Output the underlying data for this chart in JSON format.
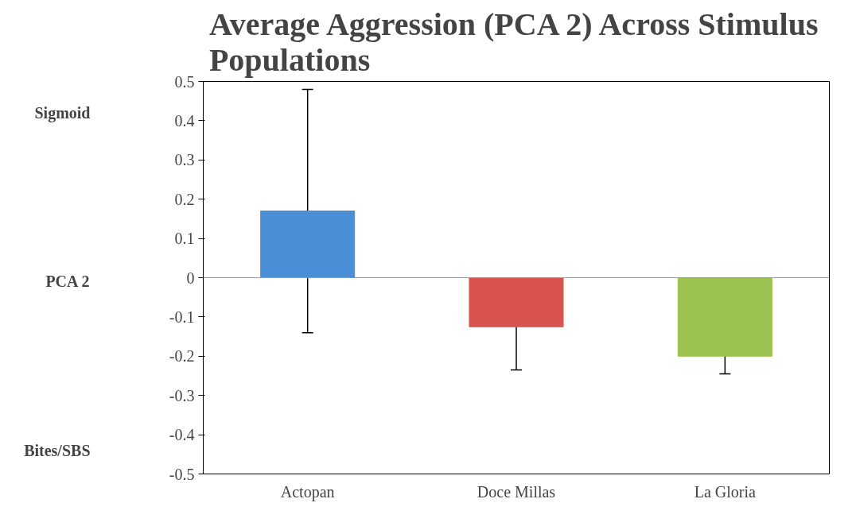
{
  "chart_data": {
    "type": "bar",
    "title": "Average Aggression (PCA 2) Across Stimulus\nPopulations",
    "categories": [
      "Actopan",
      "Doce Millas",
      "La Gloria"
    ],
    "values": [
      0.17,
      -0.125,
      -0.2
    ],
    "colors": [
      "#4a8fd6",
      "#d9534f",
      "#9bc24f"
    ],
    "errors": [
      0.31,
      0.11,
      0.045
    ],
    "ylim": [
      -0.5,
      0.5
    ],
    "yticks": [
      -0.5,
      -0.4,
      -0.3,
      -0.2,
      -0.1,
      0,
      0.1,
      0.2,
      0.3,
      0.4,
      0.5
    ],
    "annotations": [
      "Sigmoid",
      "PCA 2",
      "Bites/SBS"
    ],
    "ref_lines": [
      {
        "axis": "y",
        "value": 0,
        "color": "#999999"
      }
    ]
  }
}
